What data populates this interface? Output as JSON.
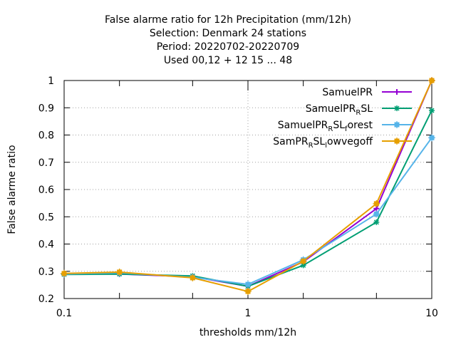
{
  "chart_data": {
    "type": "line",
    "title_lines": [
      "False alarme ratio  for 12h Precipitation (mm/12h)",
      "Selection: Denmark     24 stations",
      "Period: 20220702-20220709",
      "Used  00,12  + 12 15 ... 48"
    ],
    "xlabel": "thresholds mm/12h",
    "ylabel": "False alarme ratio",
    "x_scale": "log",
    "xlim": [
      0.1,
      10
    ],
    "ylim": [
      0.2,
      1.0
    ],
    "x_ticks": [
      0.1,
      1,
      10
    ],
    "x_tick_labels": [
      "0.1",
      "1",
      "10"
    ],
    "x_minor_ticks": [
      0.2,
      0.5,
      2,
      5
    ],
    "y_ticks": [
      0.2,
      0.3,
      0.4,
      0.5,
      0.6,
      0.7,
      0.8,
      0.9,
      1.0
    ],
    "y_tick_labels": [
      "0.2",
      "0.3",
      "0.4",
      "0.5",
      "0.6",
      "0.7",
      "0.8",
      "0.9",
      "1"
    ],
    "grid": true,
    "legend_position": "top-right",
    "x": [
      0.1,
      0.2,
      0.5,
      1,
      2,
      5,
      10
    ],
    "series": [
      {
        "name": "SamuelPR",
        "legend_parts": [
          {
            "text": "SamuelPR",
            "sub": false
          }
        ],
        "color": "#9400d3",
        "marker": "plus",
        "values": [
          0.29,
          0.29,
          0.28,
          0.245,
          0.335,
          0.53,
          1.0
        ]
      },
      {
        "name": "SamuelPR_RSL",
        "legend_parts": [
          {
            "text": "SamuelPR",
            "sub": false
          },
          {
            "text": "R",
            "sub": true
          },
          {
            "text": "SL",
            "sub": false
          }
        ],
        "color": "#009e73",
        "marker": "star",
        "values": [
          0.288,
          0.29,
          0.283,
          0.245,
          0.322,
          0.48,
          0.89
        ]
      },
      {
        "name": "SamuelPR_RSL_forest",
        "legend_parts": [
          {
            "text": "SamuelPR",
            "sub": false
          },
          {
            "text": "R",
            "sub": true
          },
          {
            "text": "SL",
            "sub": false
          },
          {
            "text": "f",
            "sub": true
          },
          {
            "text": "orest",
            "sub": false
          }
        ],
        "color": "#56b4e9",
        "marker": "box",
        "values": [
          0.29,
          0.295,
          0.278,
          0.252,
          0.342,
          0.51,
          0.79
        ]
      },
      {
        "name": "SamPR_RSL_lowvegoff",
        "legend_parts": [
          {
            "text": "SamPR",
            "sub": false
          },
          {
            "text": "R",
            "sub": true
          },
          {
            "text": "SL",
            "sub": false
          },
          {
            "text": "l",
            "sub": true
          },
          {
            "text": "owvegoff",
            "sub": false
          }
        ],
        "color": "#e69f00",
        "marker": "box",
        "values": [
          0.292,
          0.297,
          0.276,
          0.226,
          0.337,
          0.548,
          1.0
        ]
      }
    ]
  }
}
